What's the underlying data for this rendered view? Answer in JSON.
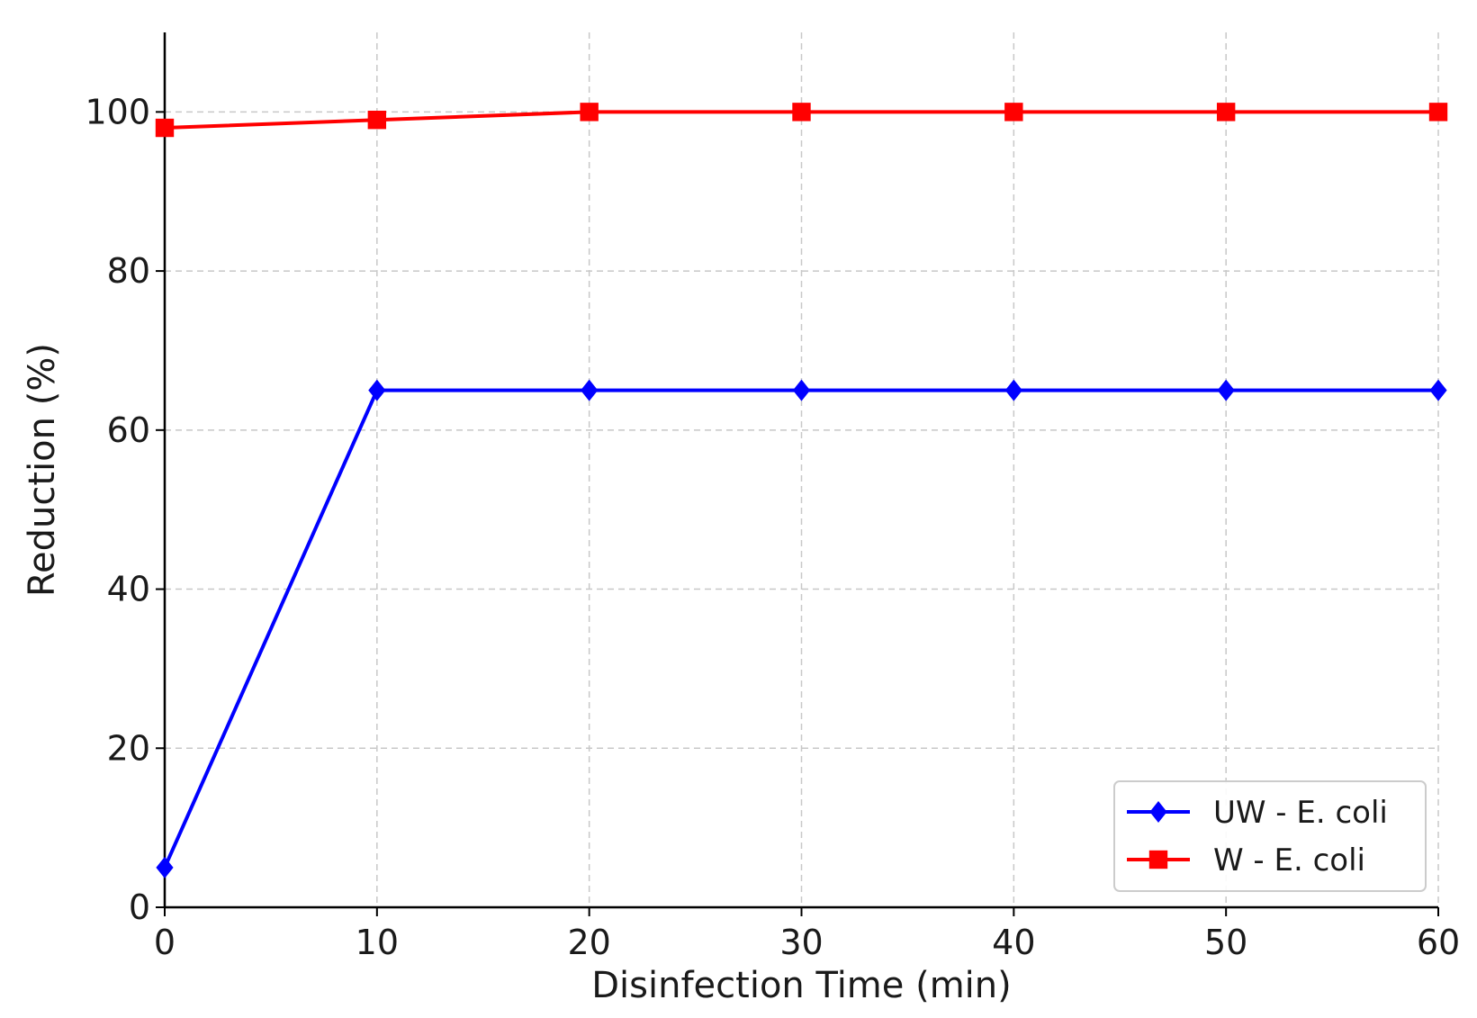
{
  "chart_data": {
    "type": "line",
    "title": "",
    "xlabel": "Disinfection Time (min)",
    "ylabel": "Reduction (%)",
    "x": [
      0,
      10,
      20,
      30,
      40,
      50,
      60
    ],
    "xlim": [
      0,
      60
    ],
    "ylim": [
      0,
      110
    ],
    "xticks": [
      "0",
      "10",
      "20",
      "30",
      "40",
      "50",
      "60"
    ],
    "yticks": [
      "0",
      "20",
      "40",
      "60",
      "80",
      "100"
    ],
    "grid": true,
    "legend_position": "bottom-right",
    "series": [
      {
        "name": "UW - E. coli",
        "values": [
          5,
          65,
          65,
          65,
          65,
          65,
          65
        ],
        "color": "#0000ff",
        "marker": "diamond"
      },
      {
        "name": "W - E. coli",
        "values": [
          98,
          99,
          100,
          100,
          100,
          100,
          100
        ],
        "color": "#ff0000",
        "marker": "square"
      }
    ]
  }
}
